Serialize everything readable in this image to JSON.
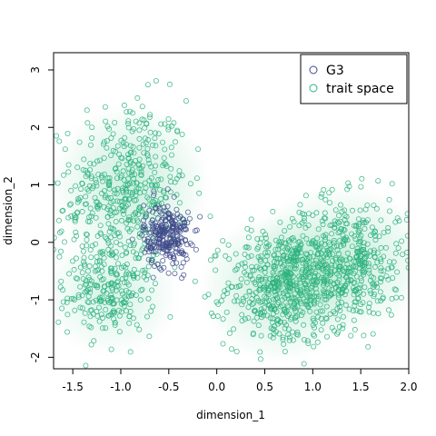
{
  "chart_data": {
    "type": "scatter",
    "title": "",
    "xlabel": "dimension_1",
    "ylabel": "dimension_2",
    "xlim": [
      -1.7,
      2.0
    ],
    "ylim": [
      -2.2,
      3.3
    ],
    "xticks": [
      -1.5,
      -1.0,
      -0.5,
      0.0,
      0.5,
      1.0,
      1.5,
      2.0
    ],
    "xtick_labels": [
      "-1.5",
      "-1.0",
      "-0.5",
      "0.0",
      "0.5",
      "1.0",
      "1.5",
      "2.0"
    ],
    "yticks": [
      -2,
      -1,
      0,
      1,
      2,
      3
    ],
    "ytick_labels": [
      "-2",
      "-1",
      "0",
      "1",
      "2",
      "3"
    ],
    "grid": false,
    "legend": {
      "position": "top-right",
      "entries": [
        {
          "label": "G3",
          "color": "#3f4a8a"
        },
        {
          "label": "trait space",
          "color": "#2db27d"
        }
      ]
    },
    "density_background": {
      "color": "#2db27d",
      "description_of_modes": "filled 2D kernel density of trait space",
      "modes": [
        {
          "x": -0.9,
          "y": 1.0,
          "sx": 0.35,
          "sy": 0.6,
          "w": 1.0
        },
        {
          "x": -1.1,
          "y": -0.9,
          "sx": 0.3,
          "sy": 0.45,
          "w": 0.8
        },
        {
          "x": 0.65,
          "y": -0.8,
          "sx": 0.35,
          "sy": 0.55,
          "w": 1.0
        },
        {
          "x": 1.3,
          "y": -0.3,
          "sx": 0.4,
          "sy": 0.55,
          "w": 1.0
        }
      ]
    },
    "series": [
      {
        "name": "G3",
        "color": "#3f4a8a",
        "n_points": 260,
        "clusters": [
          {
            "x": -0.52,
            "y": 0.12,
            "sx": 0.12,
            "sy": 0.28,
            "n": 260
          }
        ]
      },
      {
        "name": "trait space",
        "color": "#2db27d",
        "n_points": 1700,
        "clusters": [
          {
            "x": -0.9,
            "y": 1.0,
            "sx": 0.3,
            "sy": 0.75,
            "n": 380
          },
          {
            "x": -1.1,
            "y": -0.9,
            "sx": 0.22,
            "sy": 0.35,
            "n": 200
          },
          {
            "x": 0.65,
            "y": -0.8,
            "sx": 0.28,
            "sy": 0.5,
            "n": 450
          },
          {
            "x": 1.3,
            "y": -0.35,
            "sx": 0.35,
            "sy": 0.55,
            "n": 560
          },
          {
            "x": -1.3,
            "y": 0.2,
            "sx": 0.3,
            "sy": 0.6,
            "n": 110
          }
        ]
      }
    ]
  }
}
